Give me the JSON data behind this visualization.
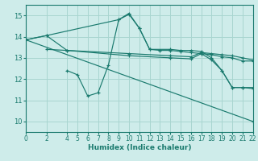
{
  "bg_color": "#ceecea",
  "grid_color": "#a8d5d0",
  "line_color": "#1a7a6e",
  "xlabel": "Humidex (Indice chaleur)",
  "xlim": [
    0,
    22
  ],
  "ylim": [
    9.5,
    15.5
  ],
  "yticks": [
    10,
    11,
    12,
    13,
    14,
    15
  ],
  "xticks": [
    0,
    2,
    4,
    5,
    6,
    7,
    8,
    9,
    10,
    11,
    12,
    13,
    14,
    15,
    16,
    17,
    18,
    19,
    20,
    21,
    22
  ],
  "lines": [
    {
      "x": [
        0,
        2,
        9,
        10,
        11,
        12,
        14,
        15,
        16,
        17,
        18,
        19,
        20,
        21,
        22
      ],
      "y": [
        13.85,
        14.05,
        14.8,
        15.1,
        14.4,
        13.4,
        13.4,
        13.35,
        13.35,
        13.3,
        13.0,
        12.4,
        11.6,
        11.6,
        11.6
      ]
    },
    {
      "x": [
        0,
        2,
        4,
        10,
        14,
        16,
        17,
        18,
        19,
        20,
        21,
        22
      ],
      "y": [
        13.85,
        14.05,
        13.35,
        13.2,
        13.1,
        13.05,
        13.25,
        13.2,
        13.15,
        13.1,
        13.0,
        12.9
      ]
    },
    {
      "x": [
        2,
        4,
        10,
        14,
        16,
        17,
        18,
        19,
        20,
        21,
        22
      ],
      "y": [
        13.4,
        13.35,
        13.1,
        13.0,
        12.95,
        13.2,
        13.15,
        13.05,
        13.0,
        12.85,
        12.85
      ]
    },
    {
      "x": [
        4,
        5,
        6,
        7,
        8,
        9,
        10,
        11,
        12,
        13,
        14,
        15,
        16,
        17,
        18,
        19,
        20,
        21,
        22
      ],
      "y": [
        12.4,
        12.2,
        11.2,
        11.35,
        12.65,
        14.8,
        15.05,
        14.4,
        13.4,
        13.35,
        13.35,
        13.3,
        13.25,
        13.2,
        12.9,
        12.4,
        11.6,
        11.6,
        11.55
      ]
    },
    {
      "x": [
        0,
        22
      ],
      "y": [
        13.85,
        10.0
      ]
    }
  ]
}
